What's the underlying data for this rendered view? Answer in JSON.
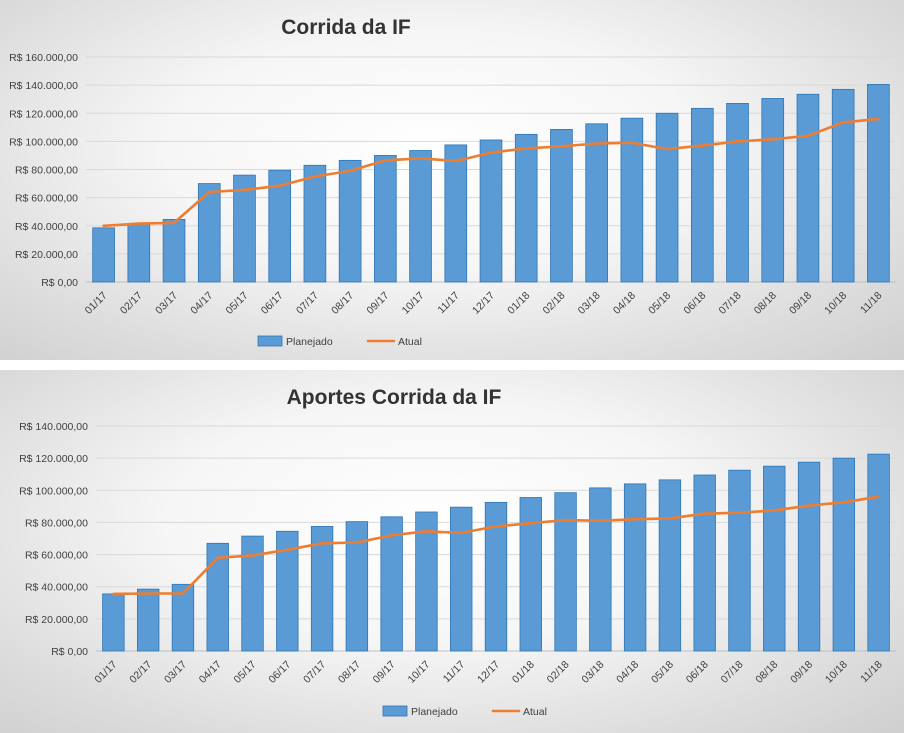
{
  "chart_data": [
    {
      "type": "bar",
      "title": "Corrida da IF",
      "categories": [
        "01/17",
        "02/17",
        "03/17",
        "04/17",
        "05/17",
        "06/17",
        "07/17",
        "08/17",
        "09/17",
        "10/17",
        "11/17",
        "12/17",
        "01/18",
        "02/18",
        "03/18",
        "04/18",
        "05/18",
        "06/18",
        "07/18",
        "08/18",
        "09/18",
        "10/18",
        "11/18"
      ],
      "ylim": [
        0,
        160000
      ],
      "y_ticks": [
        "R$ 0,00",
        "R$ 20.000,00",
        "R$ 40.000,00",
        "R$ 60.000,00",
        "R$ 80.000,00",
        "R$ 100.000,00",
        "R$ 120.000,00",
        "R$ 140.000,00",
        "R$ 160.000,00"
      ],
      "y_tick_values": [
        0,
        20000,
        40000,
        60000,
        80000,
        100000,
        120000,
        140000,
        160000
      ],
      "grid": true,
      "legend_position": "bottom",
      "series": [
        {
          "name": "Planejado",
          "kind": "bar",
          "color": "#5b9bd5",
          "values": [
            38500,
            41500,
            44500,
            70000,
            76000,
            79500,
            83000,
            86500,
            90000,
            93500,
            97500,
            101000,
            105000,
            108500,
            112500,
            116500,
            120000,
            123500,
            127000,
            130500,
            133500,
            137000,
            140500
          ]
        },
        {
          "name": "Atual",
          "kind": "line",
          "color": "#ed7d31",
          "values": [
            40000,
            41500,
            42000,
            64000,
            65500,
            68500,
            75000,
            79000,
            86500,
            88000,
            86000,
            92000,
            95000,
            96500,
            98500,
            99000,
            94500,
            97000,
            100000,
            101500,
            104000,
            113500,
            116000
          ]
        }
      ]
    },
    {
      "type": "bar",
      "title": "Aportes Corrida da IF",
      "categories": [
        "01/17",
        "02/17",
        "03/17",
        "04/17",
        "05/17",
        "06/17",
        "07/17",
        "08/17",
        "09/17",
        "10/17",
        "11/17",
        "12/17",
        "01/18",
        "02/18",
        "03/18",
        "04/18",
        "05/18",
        "06/18",
        "07/18",
        "08/18",
        "09/18",
        "10/18",
        "11/18"
      ],
      "ylim": [
        0,
        140000
      ],
      "y_ticks": [
        "R$ 0,00",
        "R$ 20.000,00",
        "R$ 40.000,00",
        "R$ 60.000,00",
        "R$ 80.000,00",
        "R$ 100.000,00",
        "R$ 120.000,00",
        "R$ 140.000,00"
      ],
      "y_tick_values": [
        0,
        20000,
        40000,
        60000,
        80000,
        100000,
        120000,
        140000
      ],
      "grid": true,
      "legend_position": "bottom",
      "series": [
        {
          "name": "Planejado",
          "kind": "bar",
          "color": "#5b9bd5",
          "values": [
            35500,
            38500,
            41500,
            67000,
            71500,
            74500,
            77500,
            80500,
            83500,
            86500,
            89500,
            92500,
            95500,
            98500,
            101500,
            104000,
            106500,
            109500,
            112500,
            115000,
            117500,
            120000,
            122500
          ]
        },
        {
          "name": "Atual",
          "kind": "line",
          "color": "#ed7d31",
          "values": [
            35500,
            35800,
            35800,
            58000,
            59500,
            63000,
            67000,
            67500,
            72000,
            74500,
            73500,
            77500,
            79500,
            81500,
            81000,
            82000,
            82500,
            85500,
            86000,
            87500,
            90500,
            92500,
            96000
          ]
        }
      ]
    }
  ]
}
